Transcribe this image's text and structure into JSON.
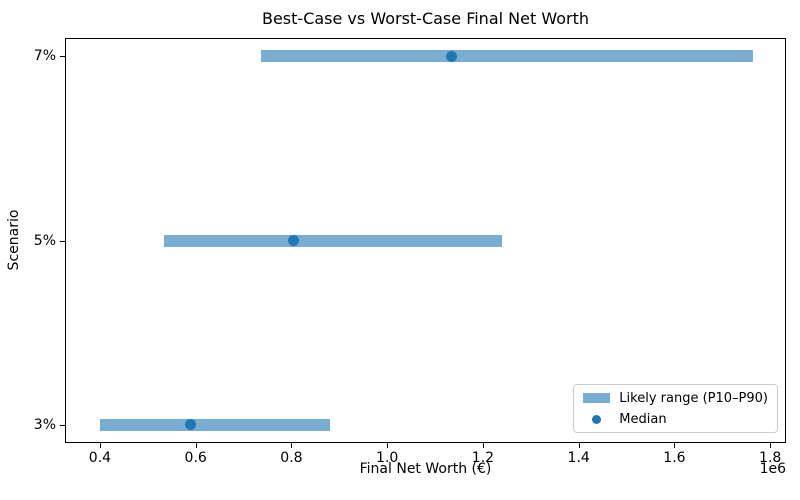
{
  "chart_data": {
    "type": "bar",
    "orientation": "horizontal",
    "title": "Best-Case vs Worst-Case Final Net Worth",
    "xlabel": "Final Net Worth (€)",
    "ylabel": "Scenario",
    "categories": [
      "3%",
      "5%",
      "7%"
    ],
    "series": [
      {
        "name": "Likely range (P10–P90)",
        "type": "range_bar",
        "p10": [
          400000,
          533000,
          737000
        ],
        "p90": [
          880000,
          1240000,
          1764000
        ]
      },
      {
        "name": "Median",
        "type": "scatter",
        "values": [
          590000,
          805000,
          1134000
        ]
      }
    ],
    "xlim": [
      327000,
      1833000
    ],
    "ylim": [
      -0.1,
      2.1
    ],
    "x_ticks": [
      400000,
      600000,
      800000,
      1000000,
      1200000,
      1400000,
      1600000,
      1800000
    ],
    "x_tick_labels": [
      "0.4",
      "0.6",
      "0.8",
      "1.0",
      "1.2",
      "1.4",
      "1.6",
      "1.8"
    ],
    "x_offset_label": "1e6",
    "grid": false,
    "legend_position": "lower right",
    "colors": {
      "range_bar": "#79add2",
      "median_dot": "#1f77b4",
      "spine": "#000000",
      "legend_border": "#cccccc"
    }
  }
}
